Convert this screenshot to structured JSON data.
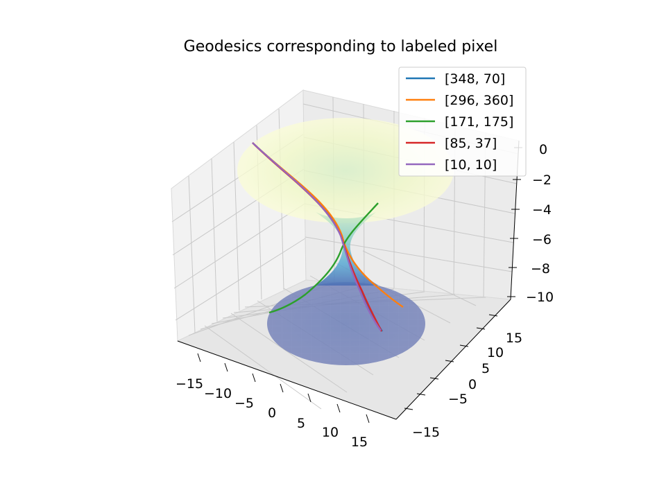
{
  "chart_data": {
    "type": "line",
    "projection": "3d",
    "title": "Geodesics corresponding to labeled pixel",
    "xlabel": "",
    "ylabel": "",
    "zlabel": "",
    "xticks": [
      "−15",
      "−10",
      "−5",
      "0",
      "5",
      "10",
      "15"
    ],
    "yticks": [
      "−15",
      "−5",
      "0",
      "5",
      "10",
      "15"
    ],
    "zticks": [
      "0",
      "−2",
      "−4",
      "−6",
      "−8",
      "−10"
    ],
    "xlim": [
      -18,
      18
    ],
    "ylim": [
      -18,
      18
    ],
    "zlim": [
      -10.5,
      0.5
    ],
    "grid": true,
    "legend_location": "top-right",
    "surface": {
      "name": "wormhole embedding surface",
      "colormap": "YlGnBu",
      "alpha": 0.5
    },
    "series": [
      {
        "name": "[348, 70]",
        "color": "#1f77b4"
      },
      {
        "name": "[296, 360]",
        "color": "#ff7f0e"
      },
      {
        "name": "[171, 175]",
        "color": "#2ca02c"
      },
      {
        "name": "[85, 37]",
        "color": "#d62728"
      },
      {
        "name": "[10, 10]",
        "color": "#9467bd"
      }
    ]
  }
}
